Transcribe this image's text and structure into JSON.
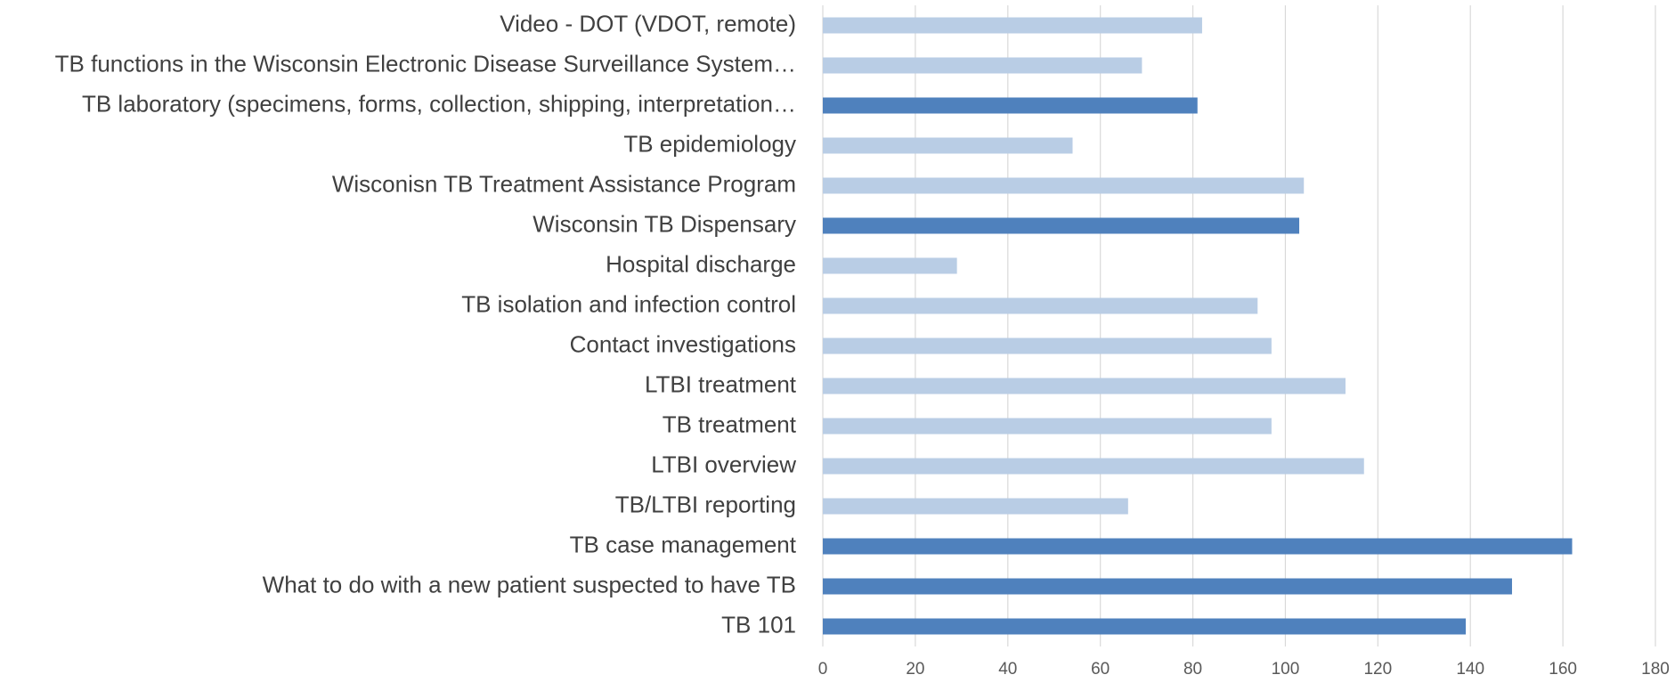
{
  "chart_data": {
    "type": "barh",
    "categories": [
      "Video - DOT (VDOT, remote)",
      "TB functions in the Wisconsin Electronic Disease Surveillance System…",
      "TB laboratory (specimens, forms, collection, shipping, interpretation…",
      "TB epidemiology",
      "Wisconisn TB Treatment Assistance Program",
      "Wisconsin TB Dispensary",
      "Hospital discharge",
      "TB isolation and infection control",
      "Contact investigations",
      "LTBI treatment",
      "TB treatment",
      "LTBI overview",
      "TB/LTBI reporting",
      "TB case management",
      "What to do with a new patient suspected to have TB",
      "TB 101"
    ],
    "values": [
      82,
      69,
      81,
      54,
      104,
      103,
      29,
      94,
      97,
      113,
      97,
      117,
      66,
      162,
      149,
      139
    ],
    "colors": [
      "#b9cde5",
      "#b9cde5",
      "#4f81bd",
      "#b9cde5",
      "#b9cde5",
      "#4f81bd",
      "#b9cde5",
      "#b9cde5",
      "#b9cde5",
      "#b9cde5",
      "#b9cde5",
      "#b9cde5",
      "#b9cde5",
      "#4f81bd",
      "#4f81bd",
      "#4f81bd"
    ],
    "xlim": [
      0,
      180
    ],
    "xticks": [
      0,
      20,
      40,
      60,
      80,
      100,
      120,
      140,
      160,
      180
    ],
    "grid": true
  }
}
